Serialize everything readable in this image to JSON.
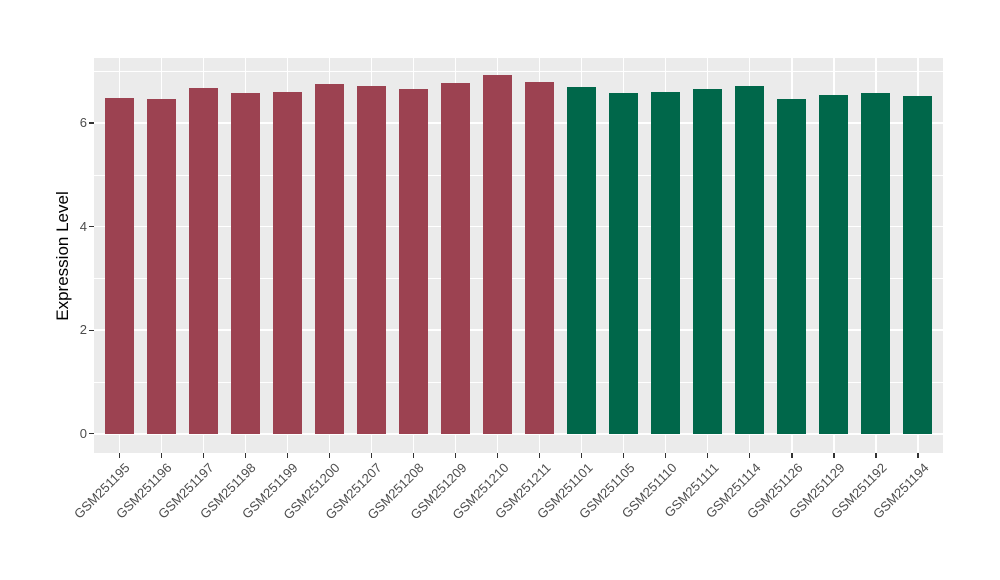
{
  "chart_data": {
    "type": "bar",
    "title": "",
    "xlabel": "",
    "ylabel": "Expression Level",
    "ylim": [
      0,
      7.27
    ],
    "yticks_major": [
      0,
      2,
      4,
      6
    ],
    "yticks_minor": [
      1,
      3,
      5,
      7
    ],
    "grid": "major-and-minor-horizontal, major-vertical-at-category-centers",
    "legend_position": "none",
    "panel_background": "#EBEBEB",
    "grid_color": "#FFFFFF",
    "tick_color": "#333333",
    "tick_label_color": "#4D4D4D",
    "axis_title_color": "#000000",
    "series": [
      {
        "name": "group-red",
        "color": "#9C4251",
        "categories": [
          "GSM251195",
          "GSM251196",
          "GSM251197",
          "GSM251198",
          "GSM251199",
          "GSM251200",
          "GSM251207",
          "GSM251208",
          "GSM251209",
          "GSM251210",
          "GSM251211"
        ],
        "values": [
          6.49,
          6.46,
          6.68,
          6.58,
          6.61,
          6.76,
          6.72,
          6.66,
          6.78,
          6.93,
          6.8
        ]
      },
      {
        "name": "group-green",
        "color": "#00674A",
        "categories": [
          "GSM251101",
          "GSM251105",
          "GSM251110",
          "GSM251111",
          "GSM251114",
          "GSM251126",
          "GSM251129",
          "GSM251192",
          "GSM251194"
        ],
        "values": [
          6.7,
          6.59,
          6.6,
          6.65,
          6.71,
          6.47,
          6.54,
          6.58,
          6.52
        ]
      }
    ]
  }
}
